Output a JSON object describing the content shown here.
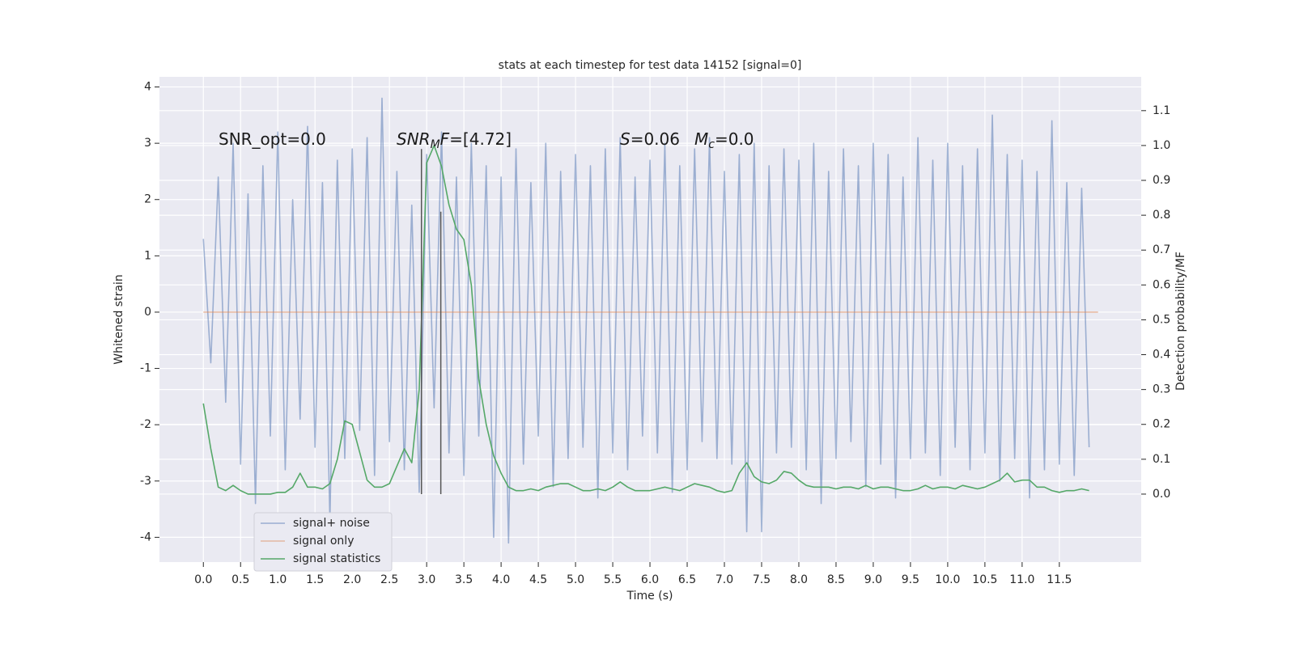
{
  "chart_data": {
    "type": "line",
    "title": "stats at each timestep for test data 14152 [signal=0]",
    "xlabel": "Time (s)",
    "ylabel": "Whitened strain",
    "y2label": "Detection probability/MF",
    "xlim": [
      -0.59,
      12.6
    ],
    "ylim": [
      -4.44,
      4.18
    ],
    "y2lim": [
      -0.195,
      1.197
    ],
    "grid": true,
    "xticks": [
      {
        "value": 0,
        "label": "0.0"
      },
      0.5,
      {
        "value": 1,
        "label": "1.0"
      },
      1.5,
      {
        "value": 2,
        "label": "2.0"
      },
      2.5,
      {
        "value": 3,
        "label": "3.0"
      },
      3.5,
      {
        "value": 4,
        "label": "4.0"
      },
      4.5,
      {
        "value": 5,
        "label": "5.0"
      },
      5.5,
      {
        "value": 6,
        "label": "6.0"
      },
      6.5,
      {
        "value": 7,
        "label": "7.0"
      },
      7.5,
      {
        "value": 8,
        "label": "8.0"
      },
      8.5,
      {
        "value": 9,
        "label": "9.0"
      },
      9.5,
      {
        "value": 10,
        "label": "10.0"
      },
      10.5,
      {
        "value": 11,
        "label": "11.0"
      },
      11.5
    ],
    "yticks": [
      -4,
      -3,
      -2,
      -1,
      0,
      1,
      2,
      3,
      4
    ],
    "y2ticks": [
      {
        "value": 0,
        "label": "0.0"
      },
      0.1,
      0.2,
      0.3,
      0.4,
      0.5,
      0.6,
      0.7,
      0.8,
      0.9,
      {
        "value": 1,
        "label": "1.0"
      },
      1.1
    ],
    "x": [
      0,
      0.1,
      0.2,
      0.3,
      0.4,
      0.5,
      0.6,
      0.7,
      0.8,
      0.9,
      1,
      1.1,
      1.2,
      1.3,
      1.4,
      1.5,
      1.6,
      1.7,
      1.8,
      1.9,
      2,
      2.1,
      2.2,
      2.3,
      2.4,
      2.5,
      2.6,
      2.7,
      2.8,
      2.9,
      3,
      3.1,
      3.2,
      3.3,
      3.4,
      3.5,
      3.6,
      3.7,
      3.8,
      3.9,
      4,
      4.1,
      4.2,
      4.3,
      4.4,
      4.5,
      4.6,
      4.7,
      4.8,
      4.9,
      5,
      5.1,
      5.2,
      5.3,
      5.4,
      5.5,
      5.6,
      5.7,
      5.8,
      5.9,
      6,
      6.1,
      6.2,
      6.3,
      6.4,
      6.5,
      6.6,
      6.7,
      6.8,
      6.9,
      7,
      7.1,
      7.2,
      7.3,
      7.4,
      7.5,
      7.6,
      7.7,
      7.8,
      7.9,
      8,
      8.1,
      8.2,
      8.3,
      8.4,
      8.5,
      8.6,
      8.7,
      8.8,
      8.9,
      9,
      9.1,
      9.2,
      9.3,
      9.4,
      9.5,
      9.6,
      9.7,
      9.8,
      9.9,
      10,
      10.1,
      10.2,
      10.3,
      10.4,
      10.5,
      10.6,
      10.7,
      10.8,
      10.9,
      11,
      11.1,
      11.2,
      11.3,
      11.4,
      11.5,
      11.6,
      11.7,
      11.8,
      11.9
    ],
    "series": [
      {
        "name": "signal+ noise",
        "color": "#4c72b0",
        "values": [
          1.3,
          -0.9,
          2.4,
          -1.6,
          3.0,
          -2.7,
          2.1,
          -3.4,
          2.6,
          -2.2,
          3.2,
          -2.8,
          2.0,
          -1.9,
          3.3,
          -2.4,
          2.3,
          -3.7,
          2.7,
          -2.6,
          2.9,
          -2.1,
          3.1,
          -2.9,
          3.8,
          -2.3,
          2.5,
          -2.8,
          1.9,
          -3.2,
          2.8,
          -1.7,
          3.2,
          -2.5,
          2.4,
          -2.9,
          3.0,
          -2.2,
          2.6,
          -4.0,
          2.4,
          -4.1,
          2.9,
          -2.7,
          2.3,
          -2.2,
          3.0,
          -3.1,
          2.5,
          -2.6,
          2.8,
          -2.4,
          2.6,
          -3.3,
          2.9,
          -2.5,
          3.1,
          -2.8,
          2.4,
          -2.2,
          2.7,
          -2.5,
          3.0,
          -3.2,
          2.6,
          -2.8,
          2.9,
          -2.3,
          3.1,
          -2.6,
          2.5,
          -2.7,
          2.8,
          -3.9,
          3.0,
          -3.9,
          2.6,
          -2.5,
          2.9,
          -2.4,
          2.7,
          -2.8,
          3.0,
          -3.4,
          2.5,
          -2.6,
          2.9,
          -2.3,
          2.6,
          -3.1,
          3.0,
          -2.7,
          2.8,
          -3.3,
          2.4,
          -2.6,
          3.1,
          -2.5,
          2.7,
          -2.9,
          3.0,
          -2.4,
          2.6,
          -2.8,
          2.9,
          -2.5,
          3.5,
          -3.0,
          2.8,
          -2.6,
          2.7,
          -3.3,
          2.5,
          -2.8,
          3.4,
          -2.7,
          2.3,
          -2.9,
          2.2,
          -2.4
        ]
      },
      {
        "name": "signal only",
        "color": "#dd8452",
        "x": [
          0,
          12.02
        ],
        "values": [
          0,
          0
        ]
      },
      {
        "name": "signal statistics",
        "color": "#55a868",
        "axis": "y2",
        "values": [
          0.26,
          0.13,
          0.02,
          0.01,
          0.025,
          0.01,
          0,
          0,
          0,
          0,
          0.005,
          0.005,
          0.02,
          0.06,
          0.02,
          0.02,
          0.015,
          0.03,
          0.1,
          0.21,
          0.2,
          0.12,
          0.04,
          0.02,
          0.02,
          0.03,
          0.08,
          0.13,
          0.09,
          0.3,
          0.95,
          1.0,
          0.94,
          0.83,
          0.76,
          0.73,
          0.6,
          0.33,
          0.2,
          0.11,
          0.06,
          0.02,
          0.01,
          0.01,
          0.015,
          0.01,
          0.02,
          0.025,
          0.03,
          0.03,
          0.02,
          0.01,
          0.01,
          0.015,
          0.01,
          0.02,
          0.035,
          0.02,
          0.01,
          0.01,
          0.01,
          0.015,
          0.02,
          0.015,
          0.01,
          0.02,
          0.03,
          0.025,
          0.02,
          0.01,
          0.005,
          0.01,
          0.06,
          0.09,
          0.05,
          0.035,
          0.03,
          0.04,
          0.065,
          0.06,
          0.04,
          0.025,
          0.02,
          0.02,
          0.02,
          0.015,
          0.02,
          0.02,
          0.015,
          0.025,
          0.015,
          0.02,
          0.02,
          0.015,
          0.01,
          0.01,
          0.015,
          0.025,
          0.015,
          0.02,
          0.02,
          0.015,
          0.025,
          0.02,
          0.015,
          0.02,
          0.03,
          0.04,
          0.06,
          0.035,
          0.04,
          0.04,
          0.02,
          0.02,
          0.01,
          0.005,
          0.01,
          0.01,
          0.015,
          0.01
        ]
      }
    ],
    "vlines": {
      "axis": "y2",
      "color": "#555555",
      "x": [
        2.93,
        3.19
      ],
      "ymin": [
        0,
        0
      ],
      "ymax": [
        0.99,
        0.81
      ]
    },
    "annotations": [
      {
        "parts": [
          {
            "text": "SNR_opt=0.0"
          }
        ]
      },
      {
        "parts": [
          {
            "text": "SNR",
            "italic": true
          },
          {
            "text": "M",
            "italic": true,
            "sub": true
          },
          {
            "text": "F",
            "italic": true
          },
          {
            "text": "=[4.72]"
          }
        ]
      },
      {
        "parts": [
          {
            "text": "S",
            "italic": true
          },
          {
            "text": "=0.06"
          }
        ]
      },
      {
        "parts": [
          {
            "text": "M",
            "italic": true
          },
          {
            "text": "c",
            "italic": true,
            "sub": true
          },
          {
            "text": "=0.0"
          }
        ]
      }
    ]
  }
}
